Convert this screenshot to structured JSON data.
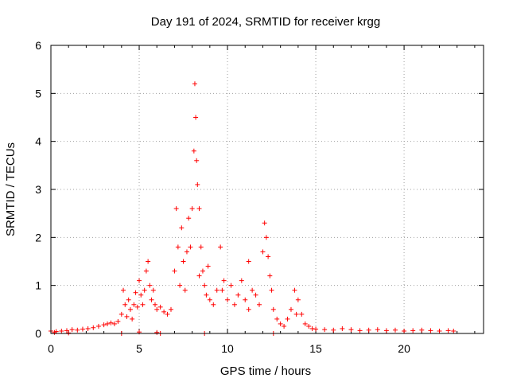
{
  "chart_data": {
    "type": "scatter",
    "title": "Day 191 of 2024, SRMTID for receiver krgg",
    "xlabel": "GPS time / hours",
    "ylabel": "SRMTID / TECUs",
    "xlim": [
      0,
      24.5
    ],
    "ylim": [
      0,
      6
    ],
    "x_ticks": [
      0,
      5,
      10,
      15,
      20
    ],
    "x_tick_labels": [
      "0",
      "5",
      "10",
      "15",
      "20"
    ],
    "y_ticks": [
      0,
      1,
      2,
      3,
      4,
      5,
      6
    ],
    "y_tick_labels": [
      "0",
      "1",
      "2",
      "3",
      "4",
      "5",
      "6"
    ],
    "grid": true,
    "marker": "+",
    "series_color": "#ff0000",
    "series": [
      {
        "name": "SRMTID",
        "x": [
          0.0,
          0.3,
          0.6,
          0.9,
          1.2,
          1.5,
          1.8,
          2.1,
          2.4,
          2.7,
          3.0,
          3.2,
          3.4,
          3.6,
          3.8,
          4.0,
          4.1,
          4.2,
          4.3,
          4.4,
          4.5,
          4.6,
          4.7,
          4.8,
          4.9,
          5.0,
          5.1,
          5.2,
          5.3,
          5.4,
          5.5,
          5.6,
          5.7,
          5.8,
          5.9,
          6.0,
          6.2,
          6.4,
          6.6,
          6.8,
          7.0,
          7.1,
          7.2,
          7.3,
          7.4,
          7.5,
          7.6,
          7.7,
          7.8,
          7.9,
          8.0,
          8.1,
          8.15,
          8.2,
          8.25,
          8.3,
          8.4,
          8.5,
          8.6,
          8.7,
          8.8,
          8.9,
          9.0,
          9.2,
          9.4,
          9.6,
          9.8,
          10.0,
          10.2,
          10.4,
          10.6,
          10.8,
          11.0,
          11.2,
          11.4,
          11.6,
          11.8,
          12.0,
          12.1,
          12.2,
          12.3,
          12.4,
          12.5,
          12.6,
          12.8,
          13.0,
          13.2,
          13.4,
          13.6,
          13.8,
          14.0,
          14.2,
          14.4,
          14.6,
          14.8,
          15.0,
          15.5,
          16.0,
          16.5,
          17.0,
          17.5,
          18.0,
          18.5,
          19.0,
          19.5,
          20.0,
          20.5,
          21.0,
          21.5,
          22.0,
          22.5,
          22.8,
          4.0,
          6.2,
          8.7,
          12.6,
          0.2,
          1.0,
          5.0,
          6.0,
          8.4,
          9.7,
          11.2,
          13.9
        ],
        "y": [
          0.05,
          0.04,
          0.05,
          0.06,
          0.08,
          0.07,
          0.09,
          0.1,
          0.12,
          0.15,
          0.18,
          0.2,
          0.22,
          0.2,
          0.25,
          0.4,
          0.9,
          0.6,
          0.35,
          0.7,
          0.5,
          0.3,
          0.6,
          0.85,
          0.55,
          1.1,
          0.8,
          0.6,
          0.9,
          1.3,
          1.5,
          1.0,
          0.7,
          0.9,
          0.6,
          0.5,
          0.55,
          0.45,
          0.4,
          0.5,
          1.3,
          2.6,
          1.8,
          1.0,
          2.2,
          1.5,
          0.9,
          1.7,
          2.4,
          1.8,
          2.6,
          3.8,
          5.2,
          4.5,
          3.6,
          3.1,
          2.6,
          1.8,
          1.3,
          1.0,
          0.8,
          1.4,
          0.7,
          0.6,
          0.9,
          1.8,
          1.1,
          0.7,
          1.0,
          0.6,
          0.8,
          1.1,
          0.7,
          1.5,
          0.9,
          0.8,
          0.6,
          1.7,
          2.3,
          2.0,
          1.6,
          1.2,
          0.9,
          0.5,
          0.3,
          0.2,
          0.15,
          0.3,
          0.5,
          0.9,
          0.7,
          0.4,
          0.2,
          0.15,
          0.1,
          0.09,
          0.08,
          0.07,
          0.1,
          0.08,
          0.06,
          0.07,
          0.08,
          0.06,
          0.07,
          0.05,
          0.06,
          0.07,
          0.06,
          0.05,
          0.06,
          0.05,
          0.0,
          0.0,
          0.0,
          0.0,
          0.02,
          0.01,
          0.03,
          0.02,
          1.2,
          0.9,
          0.5,
          0.4
        ]
      }
    ]
  }
}
